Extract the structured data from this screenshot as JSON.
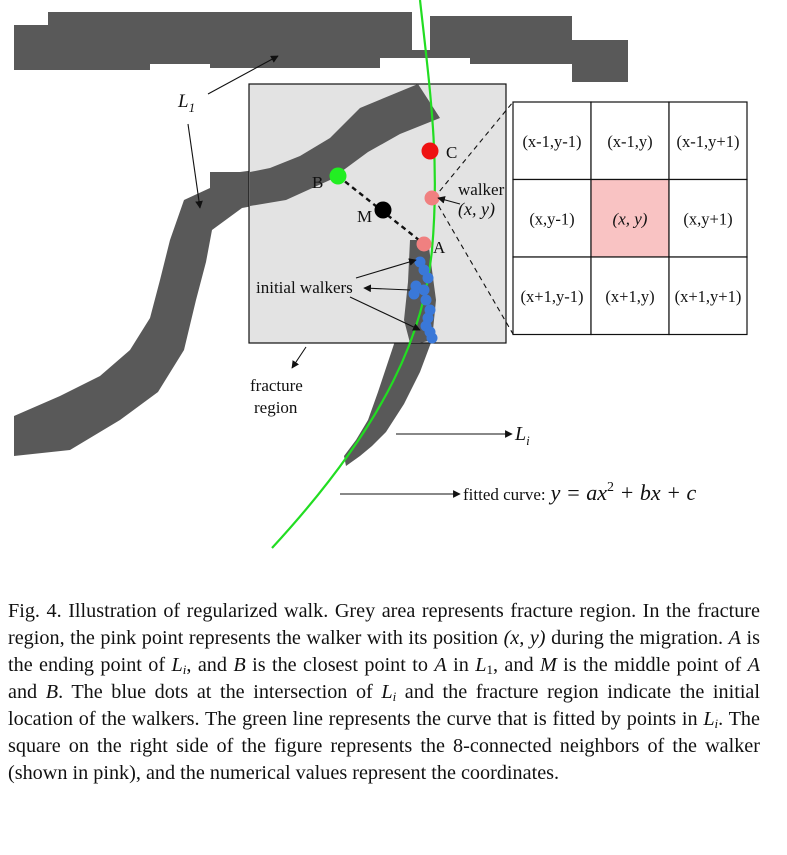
{
  "figure": {
    "labels": {
      "L1": "L",
      "L1_sub": "1",
      "Li": "L",
      "Li_sub": "i",
      "B": "B",
      "C": "C",
      "M": "M",
      "A": "A",
      "walker": "walker",
      "walker_pos": "(x, y)",
      "initial_walkers": "initial walkers",
      "fracture_region_1": "fracture",
      "fracture_region_2": "region",
      "fitted_curve_prefix": "fitted curve:",
      "fitted_curve_eq": "y = ax",
      "fitted_curve_exp": "2",
      "fitted_curve_rest": " + bx + c"
    },
    "neighbors": [
      [
        "(x-1,y-1)",
        "(x-1,y)",
        "(x-1,y+1)"
      ],
      [
        "(x,y-1)",
        "(x, y)",
        "(x,y+1)"
      ],
      [
        "(x+1,y-1)",
        "(x+1,y)",
        "(x+1,y+1)"
      ]
    ],
    "colors": {
      "crack": "#595959",
      "fracture_region": "#e3e3e3",
      "curve": "#22dd22",
      "walker": "#f08080",
      "point_c": "#ee1111",
      "point_b": "#22ee22",
      "point_m": "#000000",
      "initial_walkers": "#3a78d8",
      "center_cell": "#f9c3c3"
    }
  },
  "caption": {
    "prefix": "Fig. 4.  Illustration of regularized walk. Grey area represents fracture region. In the fracture region, the pink point represents the walker with its position ",
    "xy": "(x, y)",
    "s2": " during the migration. ",
    "A1": "A",
    "s3": " is the ending point of ",
    "Li1": "L",
    "Li1_sub": "i",
    "s4": ", and ",
    "B1": "B",
    "s5": " is the closest point to ",
    "A2": "A",
    "s6": " in ",
    "L1": "L",
    "L1_sub": "1",
    "s7": ", and ",
    "M1": "M",
    "s8": " is the middle point of ",
    "A3": "A",
    "s9": " and ",
    "B2": "B",
    "s10": ". The blue dots at the intersection of ",
    "Li2": "L",
    "Li2_sub": "i",
    "s11": " and the fracture region indicate the initial location of the walkers. The green line represents the curve that is fitted by points in ",
    "Li3": "L",
    "Li3_sub": "i",
    "s12": ". The square on the right side of the figure represents the 8-connected neighbors of the walker (shown in pink), and the numerical values represent the coordinates."
  }
}
